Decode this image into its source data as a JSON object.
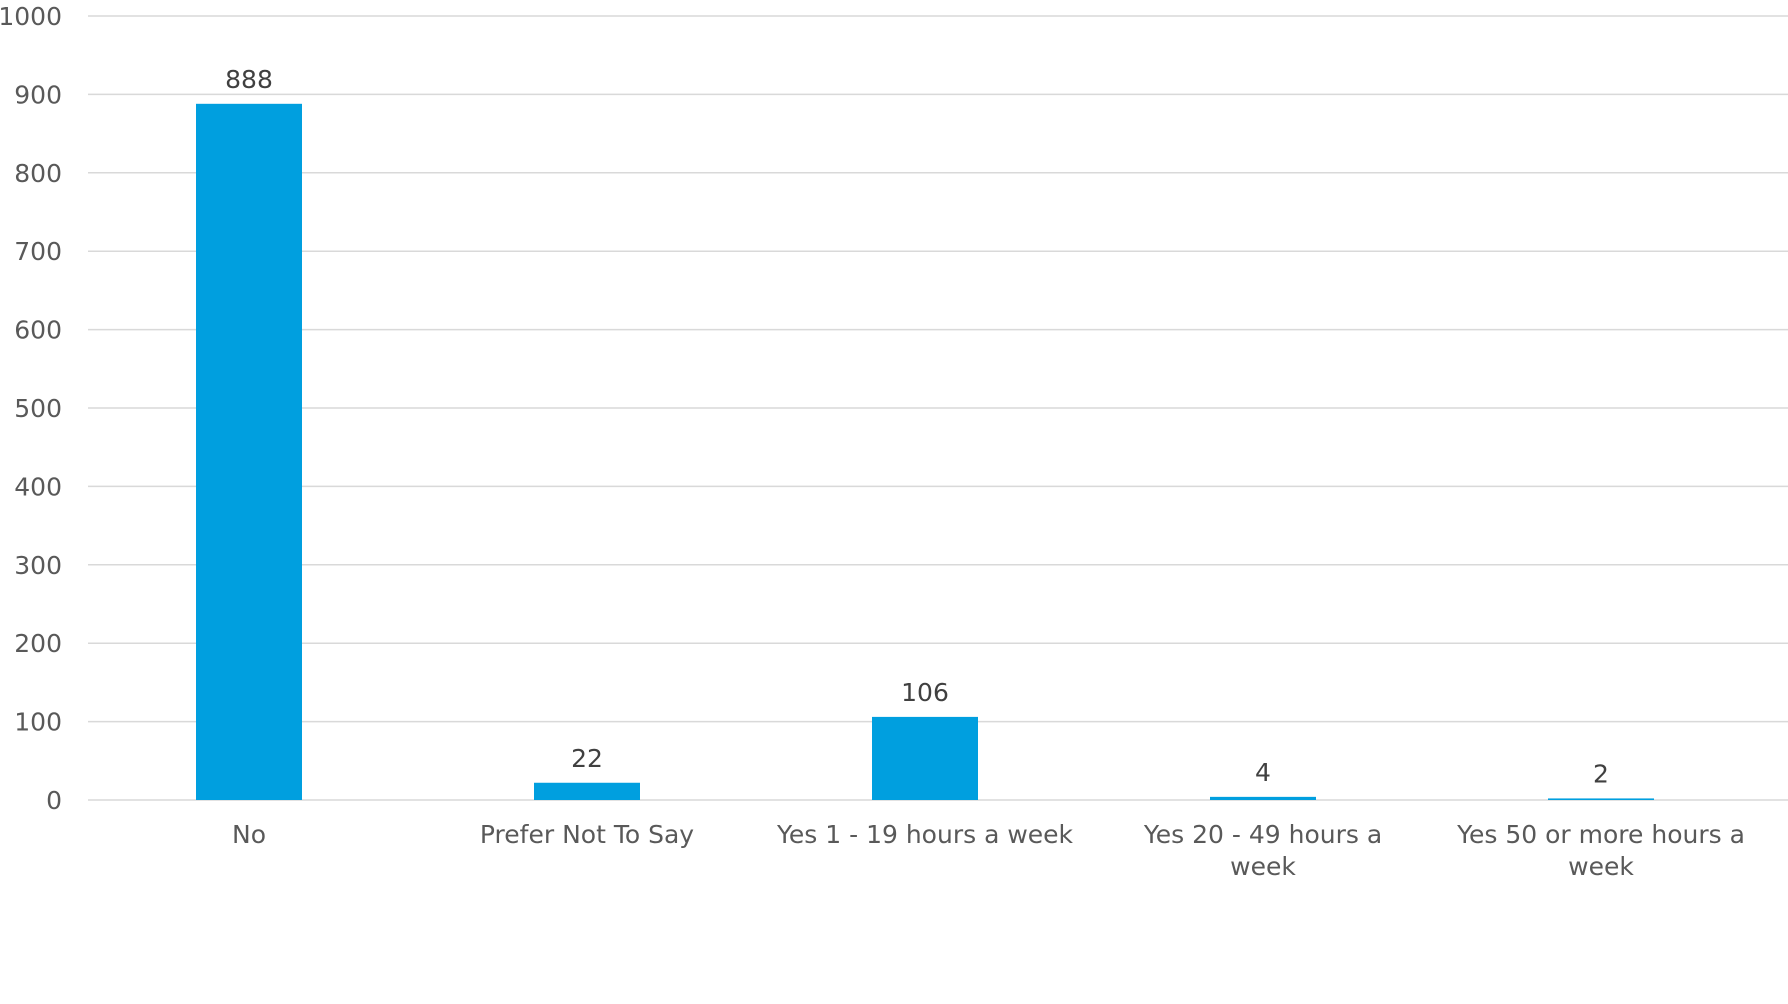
{
  "chart_data": {
    "type": "bar",
    "categories": [
      [
        "No"
      ],
      [
        "Prefer Not To Say"
      ],
      [
        "Yes 1 - 19 hours a week"
      ],
      [
        "Yes 20 - 49 hours a",
        "week"
      ],
      [
        "Yes 50 or more hours a",
        "week"
      ]
    ],
    "values": [
      888,
      22,
      106,
      4,
      2
    ],
    "data_labels": [
      "888",
      "22",
      "106",
      "4",
      "2"
    ],
    "ylim": [
      0,
      1000
    ],
    "yticks": [
      0,
      100,
      200,
      300,
      400,
      500,
      600,
      700,
      800,
      900,
      1000
    ],
    "grid": true,
    "legend": "none",
    "bar_color": "#009fdf",
    "grid_color": "#d9d9d9",
    "text_color": "#595959"
  }
}
